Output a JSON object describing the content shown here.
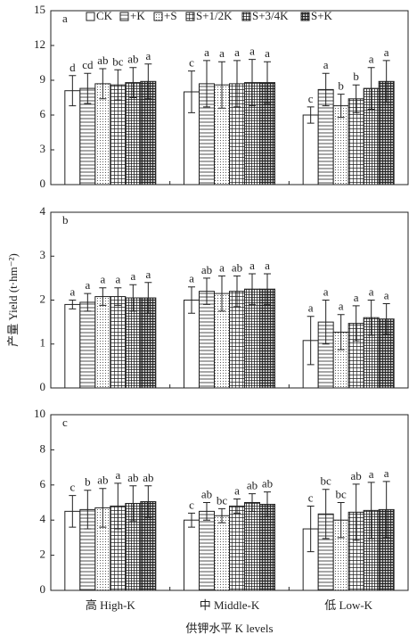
{
  "chart_data": [
    {
      "type": "bar",
      "panel": "a",
      "ylim": [
        0,
        15
      ],
      "yticks": [
        0,
        3,
        6,
        9,
        12,
        15
      ],
      "series": [
        {
          "name": "CK",
          "pattern": "none",
          "values": [
            8.1,
            8.0,
            6.0
          ],
          "errors": [
            1.3,
            1.8,
            0.7
          ],
          "letters": [
            "d",
            "c",
            "c"
          ]
        },
        {
          "name": "+K",
          "pattern": "horizontal",
          "values": [
            8.3,
            8.7,
            8.2
          ],
          "errors": [
            1.3,
            2.0,
            1.4
          ],
          "letters": [
            "cd",
            "a",
            "a"
          ]
        },
        {
          "name": "+S",
          "pattern": "dots",
          "values": [
            8.7,
            8.6,
            6.8
          ],
          "errors": [
            1.3,
            2.0,
            1.0
          ],
          "letters": [
            "ab",
            "a",
            "b"
          ]
        },
        {
          "name": "S+1/2K",
          "pattern": "grid",
          "values": [
            8.6,
            8.7,
            7.4
          ],
          "errors": [
            1.3,
            2.0,
            1.2
          ],
          "letters": [
            "bc",
            "a",
            "b"
          ]
        },
        {
          "name": "S+3/4K",
          "pattern": "grid-dense",
          "values": [
            8.8,
            8.8,
            8.3
          ],
          "errors": [
            1.3,
            2.0,
            1.8
          ],
          "letters": [
            "ab",
            "a",
            "a"
          ]
        },
        {
          "name": "S+K",
          "pattern": "crosshatch",
          "values": [
            8.9,
            8.8,
            8.9
          ],
          "errors": [
            1.5,
            1.8,
            1.8
          ],
          "letters": [
            "a",
            "a",
            "a"
          ]
        }
      ]
    },
    {
      "type": "bar",
      "panel": "b",
      "ylabel": "产量 Yield (t·hm⁻²)",
      "ylim": [
        0,
        4
      ],
      "yticks": [
        0,
        1,
        2,
        3,
        4
      ],
      "series": [
        {
          "values": [
            1.9,
            2.0,
            1.08
          ],
          "errors": [
            0.1,
            0.3,
            0.55
          ],
          "letters": [
            "a",
            "a",
            "a"
          ]
        },
        {
          "values": [
            1.95,
            2.2,
            1.5
          ],
          "errors": [
            0.2,
            0.3,
            0.5
          ],
          "letters": [
            "a",
            "ab",
            "a"
          ]
        },
        {
          "values": [
            2.08,
            2.15,
            1.27
          ],
          "errors": [
            0.2,
            0.4,
            0.4
          ],
          "letters": [
            "a",
            "a",
            "a"
          ]
        },
        {
          "values": [
            2.08,
            2.2,
            1.47
          ],
          "errors": [
            0.2,
            0.35,
            0.4
          ],
          "letters": [
            "a",
            "ab",
            "a"
          ]
        },
        {
          "values": [
            2.05,
            2.25,
            1.6
          ],
          "errors": [
            0.3,
            0.35,
            0.4
          ],
          "letters": [
            "a",
            "a",
            "a"
          ]
        },
        {
          "values": [
            2.05,
            2.25,
            1.57
          ],
          "errors": [
            0.35,
            0.35,
            0.35
          ],
          "letters": [
            "a",
            "a",
            "a"
          ]
        }
      ]
    },
    {
      "type": "bar",
      "panel": "c",
      "xlabel": "供钾水平 K levels",
      "categories": [
        "高 High-K",
        "中 Middle-K",
        "低 Low-K"
      ],
      "ylim": [
        0,
        10
      ],
      "yticks": [
        0,
        2,
        4,
        6,
        8,
        10
      ],
      "series": [
        {
          "values": [
            4.5,
            4.0,
            3.5
          ],
          "errors": [
            0.9,
            0.4,
            1.3
          ],
          "letters": [
            "c",
            "c",
            "c"
          ]
        },
        {
          "values": [
            4.6,
            4.5,
            4.35
          ],
          "errors": [
            1.1,
            0.5,
            1.4
          ],
          "letters": [
            "b",
            "ab",
            "bc"
          ]
        },
        {
          "values": [
            4.7,
            4.25,
            4.0
          ],
          "errors": [
            1.1,
            0.4,
            1.0
          ],
          "letters": [
            "ab",
            "bc",
            "bc"
          ]
        },
        {
          "values": [
            4.8,
            4.8,
            4.45
          ],
          "errors": [
            1.3,
            0.4,
            1.6
          ],
          "letters": [
            "a",
            "a",
            "ab"
          ]
        },
        {
          "values": [
            4.95,
            5.0,
            4.55
          ],
          "errors": [
            1.0,
            0.5,
            1.6
          ],
          "letters": [
            "ab",
            "ab",
            "a"
          ]
        },
        {
          "values": [
            5.05,
            4.9,
            4.6
          ],
          "errors": [
            0.9,
            0.7,
            1.6
          ],
          "letters": [
            "ab",
            "ab",
            "a"
          ]
        }
      ]
    }
  ]
}
